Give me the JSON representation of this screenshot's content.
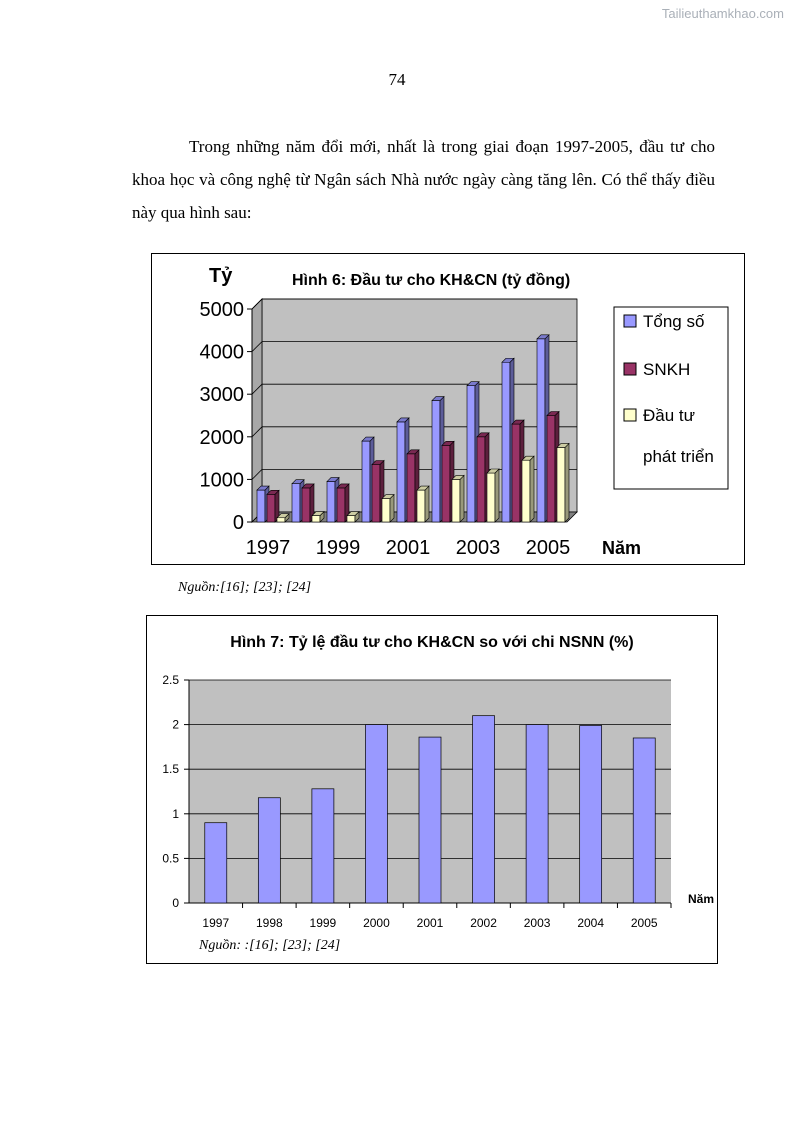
{
  "watermark": "Tailieuthamkhao.com",
  "page_number": "74",
  "paragraph": "Trong những năm đổi mới, nhất là trong giai đoạn 1997-2005, đầu tư cho khoa học và công nghệ từ Ngân sách Nhà nước ngày càng tăng lên. Có thể thấy điều này qua hình sau:",
  "source_fig6": "Nguồn:[16]; [23]; [24]",
  "source_fig7": "Nguồn: :[16]; [23]; [24]",
  "colors": {
    "total": "#9999ff",
    "snkh": "#993366",
    "dev": "#ffffcc",
    "plot_bg": "#c0c0c0"
  },
  "chart_data": [
    {
      "type": "bar",
      "title": "Hình 6: Đầu tư cho KH&CN (tỷ đồng)",
      "ylabel": "Tỷ",
      "xlabel": "Năm",
      "categories": [
        "1997",
        "1998",
        "1999",
        "2000",
        "2001",
        "2002",
        "2003",
        "2004",
        "2005"
      ],
      "x_tick_labels": [
        "1997",
        "1999",
        "2001",
        "2003",
        "2005"
      ],
      "y_ticks": [
        "0",
        "1000",
        "2000",
        "3000",
        "4000",
        "5000"
      ],
      "ylim": [
        0,
        5000
      ],
      "legend_position": "right",
      "series": [
        {
          "name": "Tổng số",
          "values": [
            750,
            900,
            950,
            1900,
            2350,
            2850,
            3200,
            3750,
            4300
          ]
        },
        {
          "name": "SNKH",
          "values": [
            650,
            800,
            800,
            1350,
            1600,
            1800,
            2000,
            2300,
            2500
          ]
        },
        {
          "name": "Đầu tư phát triển",
          "values": [
            100,
            150,
            150,
            550,
            750,
            1000,
            1150,
            1450,
            1750
          ]
        }
      ]
    },
    {
      "type": "bar",
      "title": "Hình 7: Tỷ lệ đầu tư cho KH&CN so với chi NSNN (%)",
      "xlabel": "Năm",
      "ylabel": "",
      "categories": [
        "1997",
        "1998",
        "1999",
        "2000",
        "2001",
        "2002",
        "2003",
        "2004",
        "2005"
      ],
      "values": [
        0.9,
        1.18,
        1.28,
        2.0,
        1.86,
        2.1,
        2.0,
        1.99,
        1.85
      ],
      "y_ticks": [
        "0",
        "0.5",
        "1",
        "1.5",
        "2",
        "2.5"
      ],
      "ylim": [
        0,
        2.5
      ]
    }
  ]
}
